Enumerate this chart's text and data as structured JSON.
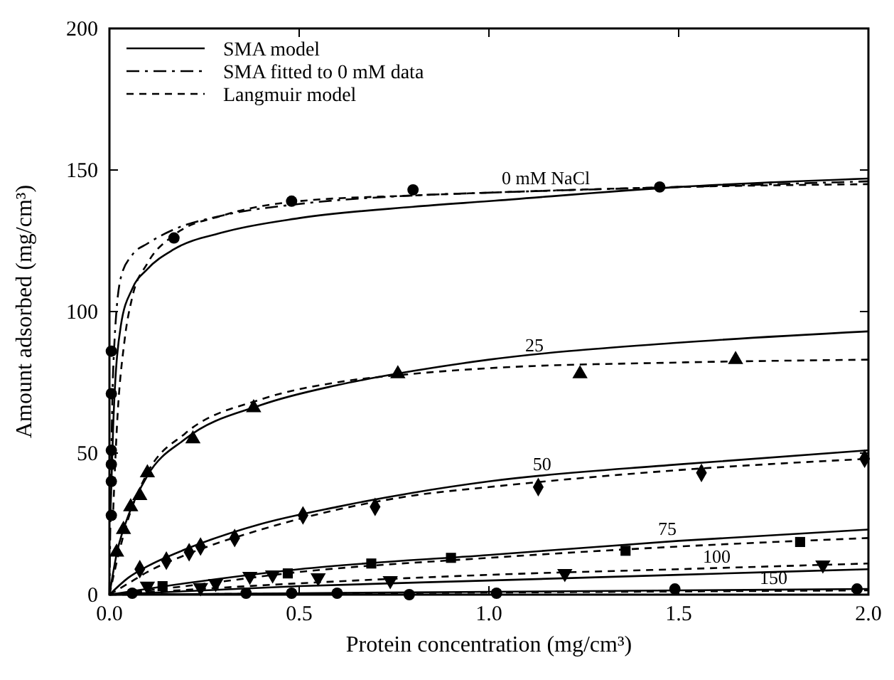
{
  "chart_data": {
    "type": "line",
    "xlabel": "Protein concentration (mg/cm³)",
    "ylabel": "Amount adsorbed (mg/cm³)",
    "xlim": [
      0,
      2.0
    ],
    "ylim": [
      0,
      200
    ],
    "xticks": [
      {
        "value": 0,
        "label": "0.0"
      },
      0.5,
      {
        "value": 1,
        "label": "1.0"
      },
      1.5,
      {
        "value": 2,
        "label": "2.0"
      }
    ],
    "yticks": [
      0,
      50,
      100,
      150,
      200
    ],
    "grid": false,
    "legend": "top left",
    "series": [
      {
        "name": "SMA model",
        "type": "line",
        "line_style": "solid",
        "color": "#000000",
        "x": [
          0.003,
          0.01,
          0.03,
          0.06,
          0.1,
          0.17,
          0.3,
          0.5,
          0.8,
          1.0,
          1.5,
          2.0
        ],
        "values": [
          30,
          60,
          95,
          108,
          115,
          122,
          128,
          133,
          137,
          139,
          144,
          147
        ]
      },
      {
        "name": "SMA fitted to 0 mM data",
        "type": "line",
        "line_style": "dashdot",
        "color": "#000000",
        "x": [
          0,
          0.01,
          0.03,
          0.06,
          0.1,
          0.17,
          0.3,
          0.5,
          0.8,
          1.0,
          1.5,
          2.0
        ],
        "values": [
          0,
          80,
          112,
          120,
          124,
          129,
          134,
          138,
          141,
          142,
          144,
          146
        ]
      },
      {
        "name": "Langmuir model",
        "type": "line",
        "line_style": "dashed",
        "color": "#000000",
        "x": [
          0.01,
          0.02,
          0.04,
          0.06,
          0.1,
          0.17,
          0.3,
          0.5,
          0.8,
          1.0,
          1.5,
          2.0
        ],
        "values": [
          30,
          60,
          90,
          105,
          117,
          127,
          134,
          139,
          141,
          142,
          144,
          145
        ]
      },
      {
        "type": "line",
        "line_style": "solid",
        "color": "#000000",
        "x": [
          0,
          0.02,
          0.05,
          0.1,
          0.2,
          0.4,
          0.6,
          0.8,
          1.0,
          1.5,
          2.0
        ],
        "values": [
          0,
          15,
          28,
          42,
          55,
          67,
          74,
          79,
          83,
          89,
          93
        ]
      },
      {
        "type": "line",
        "line_style": "dashed",
        "color": "#000000",
        "x": [
          0,
          0.02,
          0.05,
          0.1,
          0.2,
          0.4,
          0.6,
          0.8,
          1.0,
          1.5,
          2.0
        ],
        "values": [
          0,
          12,
          27,
          43,
          57,
          69,
          75,
          78,
          80,
          82,
          83
        ]
      },
      {
        "type": "line",
        "line_style": "solid",
        "color": "#000000",
        "x": [
          0,
          0.05,
          0.1,
          0.2,
          0.4,
          0.6,
          0.8,
          1.0,
          1.5,
          2.0
        ],
        "values": [
          0,
          6,
          10,
          16,
          25,
          31,
          36,
          40,
          46,
          51
        ]
      },
      {
        "type": "line",
        "line_style": "dashed",
        "color": "#000000",
        "x": [
          0,
          0.05,
          0.1,
          0.2,
          0.4,
          0.6,
          0.8,
          1.0,
          1.5,
          2.0
        ],
        "values": [
          0,
          4,
          8,
          14,
          23,
          30,
          35,
          38,
          44,
          48
        ]
      },
      {
        "type": "line",
        "line_style": "solid",
        "color": "#000000",
        "x": [
          0,
          0.2,
          0.5,
          1.0,
          1.5,
          2.0
        ],
        "values": [
          0,
          4,
          9,
          14,
          19,
          23
        ]
      },
      {
        "type": "line",
        "line_style": "dashed",
        "color": "#000000",
        "x": [
          0,
          0.2,
          0.5,
          1.0,
          1.5,
          2.0
        ],
        "values": [
          0,
          3,
          8,
          13,
          17,
          20
        ]
      },
      {
        "type": "line",
        "line_style": "solid",
        "color": "#000000",
        "x": [
          0,
          0.5,
          1.0,
          1.5,
          2.0
        ],
        "values": [
          0,
          3,
          5,
          7,
          9
        ]
      },
      {
        "type": "line",
        "line_style": "dashed",
        "color": "#000000",
        "x": [
          0,
          0.5,
          1.0,
          1.5,
          2.0
        ],
        "values": [
          0,
          4,
          7,
          9,
          11
        ]
      },
      {
        "type": "line",
        "line_style": "solid",
        "color": "#000000",
        "x": [
          0,
          1.0,
          2.0
        ],
        "values": [
          0,
          1,
          2
        ]
      },
      {
        "type": "line",
        "line_style": "dashed",
        "color": "#000000",
        "x": [
          0,
          2.0
        ],
        "values": [
          0,
          1.5
        ]
      },
      {
        "type": "scatter",
        "marker": "circle",
        "color": "#000000",
        "x": [
          0.005,
          0.005,
          0.17,
          0.48,
          0.8,
          1.45
        ],
        "values": [
          86,
          71,
          126,
          139,
          143,
          144
        ]
      },
      {
        "type": "scatter",
        "marker": "triangle",
        "color": "#000000",
        "x": [
          0.019,
          0.037,
          0.056,
          0.08,
          0.1,
          0.22,
          0.38,
          0.76,
          1.24,
          1.65
        ],
        "values": [
          15,
          23,
          31,
          35,
          43,
          55,
          66,
          78,
          78,
          83
        ]
      },
      {
        "type": "scatter",
        "marker": "diamond",
        "color": "#000000",
        "x": [
          0.08,
          0.15,
          0.21,
          0.24,
          0.33,
          0.51,
          0.7,
          1.13,
          1.56,
          1.99
        ],
        "values": [
          9,
          12,
          15,
          17,
          20,
          28,
          31,
          38,
          43,
          48
        ]
      },
      {
        "type": "scatter",
        "marker": "square",
        "color": "#000000",
        "x": [
          0.14,
          0.47,
          0.69,
          0.9,
          1.36,
          1.82
        ],
        "values": [
          3,
          7.5,
          11,
          13,
          15.5,
          18.6
        ]
      },
      {
        "type": "scatter",
        "marker": "triangle-down",
        "color": "#000000",
        "x": [
          0.1,
          0.24,
          0.28,
          0.37,
          0.43,
          0.55,
          0.74,
          1.2,
          1.88
        ],
        "values": [
          3,
          2.5,
          4,
          6.5,
          7,
          6,
          5,
          7.5,
          10.5
        ]
      },
      {
        "type": "scatter",
        "marker": "circle",
        "color": "#000000",
        "x": [
          0.005,
          0.005,
          0.005,
          0.005,
          0.06,
          0.36,
          0.48,
          0.6,
          0.79,
          1.02,
          1.49,
          1.97
        ],
        "values": [
          51,
          46,
          40,
          28,
          0.5,
          0.5,
          0.5,
          0.5,
          0,
          0.5,
          2,
          2
        ]
      }
    ],
    "annotations": [
      {
        "text": "0 mM NaCl",
        "x": 1.15,
        "y": 143
      },
      {
        "text": "25",
        "x": 1.12,
        "y": 84
      },
      {
        "text": "50",
        "x": 1.14,
        "y": 42
      },
      {
        "text": "75",
        "x": 1.47,
        "y": 19
      },
      {
        "text": "100",
        "x": 1.6,
        "y": 9.4
      },
      {
        "text": "150",
        "x": 1.75,
        "y": 1.75
      }
    ]
  }
}
